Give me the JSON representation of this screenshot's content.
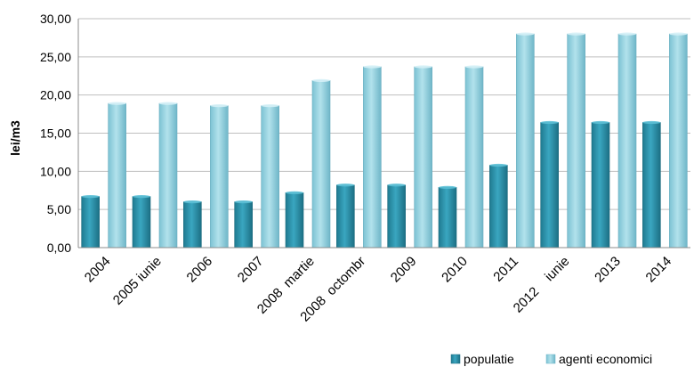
{
  "chart_data": {
    "type": "bar",
    "ylabel": "lei/m3",
    "ylim": [
      0,
      30
    ],
    "yticks": [
      "0,00",
      "5,00",
      "10,00",
      "15,00",
      "20,00",
      "25,00",
      "30,00"
    ],
    "categories": [
      "2004",
      "2005 iunie",
      "2006",
      "2007",
      "2008  martie",
      "2008  octombr",
      "2009",
      "2010",
      "2011",
      "2012    iunie",
      "2013",
      "2014"
    ],
    "series": [
      {
        "name": "populatie",
        "color": "#2a90a8",
        "values": [
          6.7,
          6.7,
          6.0,
          6.0,
          7.2,
          8.2,
          8.2,
          7.9,
          10.8,
          16.4,
          16.4,
          16.4
        ]
      },
      {
        "name": "agenti economici",
        "color": "#8fd0df",
        "values": [
          18.9,
          18.9,
          18.6,
          18.6,
          21.9,
          23.7,
          23.7,
          23.7,
          28.0,
          28.0,
          28.0,
          28.0
        ]
      }
    ],
    "grid": true,
    "legend": "bottom-right"
  }
}
